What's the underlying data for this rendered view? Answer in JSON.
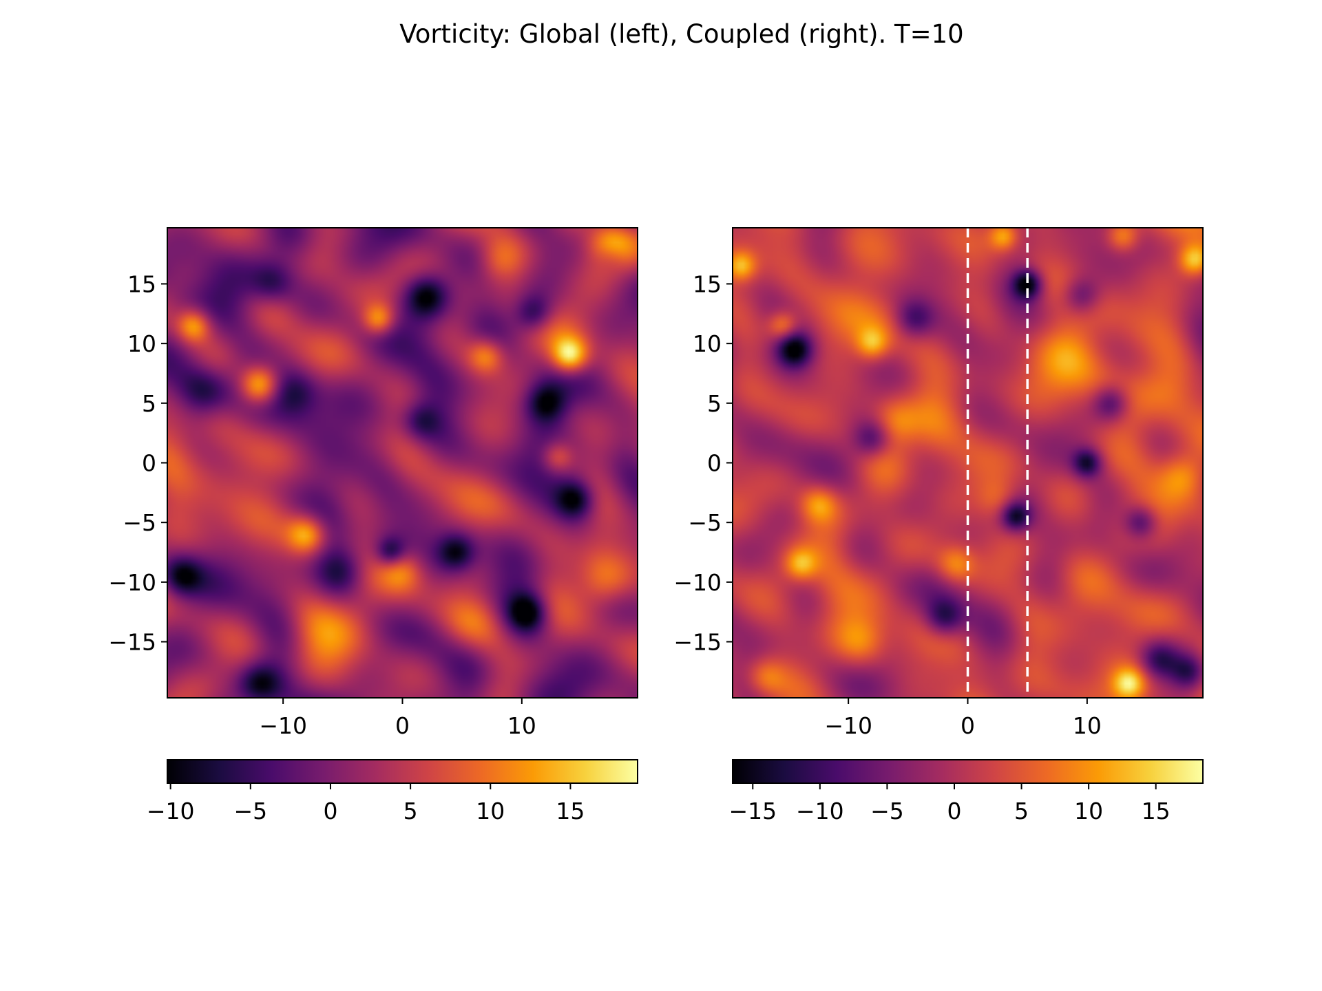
{
  "title": "Vorticity: Global (left), Coupled (right). T=10",
  "colormap": {
    "name": "inferno",
    "stops": [
      "#000004",
      "#1b0c41",
      "#4a0c6b",
      "#781c6d",
      "#a52c60",
      "#cf4446",
      "#ed6925",
      "#fb9b06",
      "#f7d13d",
      "#fcffa4"
    ]
  },
  "chart_data": [
    {
      "type": "heatmap",
      "name": "Global",
      "xlim": [
        -19.7,
        19.7
      ],
      "ylim": [
        -19.7,
        19.7
      ],
      "xticks": [
        -10,
        0,
        10
      ],
      "xtick_labels": [
        "−10",
        "0",
        "10"
      ],
      "yticks": [
        15,
        10,
        5,
        0,
        -5,
        -10,
        -15
      ],
      "ytick_labels": [
        "15",
        "10",
        "5",
        "0",
        "−5",
        "−10",
        "−15"
      ],
      "value_range": [
        -10.2,
        19.2
      ],
      "colorbar": {
        "ticks": [
          -10,
          -5,
          0,
          5,
          10,
          15
        ],
        "tick_labels": [
          "−10",
          "−5",
          "0",
          "5",
          "10",
          "15"
        ]
      },
      "dashed_lines_x": [],
      "features": [
        {
          "x": -17.5,
          "y": 11.5,
          "value": 14,
          "r": 1.4
        },
        {
          "x": -16.5,
          "y": 6.0,
          "value": -10,
          "r": 2.2
        },
        {
          "x": -12.0,
          "y": 6.5,
          "value": 17,
          "r": 1.6
        },
        {
          "x": -9.0,
          "y": 6.0,
          "value": -7,
          "r": 2.0
        },
        {
          "x": -2.0,
          "y": 12.0,
          "value": 13,
          "r": 1.3
        },
        {
          "x": 2.0,
          "y": 14.0,
          "value": -10,
          "r": 1.8
        },
        {
          "x": 7.0,
          "y": 9.0,
          "value": 12,
          "r": 1.5
        },
        {
          "x": 11.0,
          "y": 12.5,
          "value": -9,
          "r": 1.6
        },
        {
          "x": 14.0,
          "y": 9.0,
          "value": 18,
          "r": 1.5
        },
        {
          "x": 17.5,
          "y": 17.5,
          "value": -8,
          "r": 1.4
        },
        {
          "x": 17.5,
          "y": 18.0,
          "value": 16,
          "r": 1.7
        },
        {
          "x": 12.0,
          "y": 5.0,
          "value": -10,
          "r": 1.7
        },
        {
          "x": 1.5,
          "y": 3.5,
          "value": -6,
          "r": 1.6
        },
        {
          "x": 13.0,
          "y": 0.5,
          "value": 10,
          "r": 1.3
        },
        {
          "x": 14.5,
          "y": -3.0,
          "value": -10,
          "r": 1.6
        },
        {
          "x": -14.0,
          "y": -3.0,
          "value": 8,
          "r": 4.5
        },
        {
          "x": -8.0,
          "y": -6.0,
          "value": 14,
          "r": 1.6
        },
        {
          "x": -5.0,
          "y": -9.0,
          "value": -7,
          "r": 2.0
        },
        {
          "x": -1.0,
          "y": -7.5,
          "value": -8,
          "r": 1.2
        },
        {
          "x": 4.5,
          "y": -7.5,
          "value": -10,
          "r": 1.6
        },
        {
          "x": 0.0,
          "y": -9.0,
          "value": 11,
          "r": 1.8
        },
        {
          "x": 6.0,
          "y": -13.5,
          "value": 11,
          "r": 2.6
        },
        {
          "x": 10.5,
          "y": -12.5,
          "value": -10,
          "r": 1.6
        },
        {
          "x": -6.5,
          "y": -14.5,
          "value": 8,
          "r": 3.0
        },
        {
          "x": -12.0,
          "y": -18.5,
          "value": -9,
          "r": 1.8
        },
        {
          "x": -18.5,
          "y": -9.5,
          "value": -8,
          "r": 1.6
        },
        {
          "x": 17.0,
          "y": -10.0,
          "value": 9,
          "r": 2.2
        },
        {
          "x": -11.0,
          "y": 15.0,
          "value": -7,
          "r": 1.8
        },
        {
          "x": 8.0,
          "y": 17.0,
          "value": 7,
          "r": 1.8
        }
      ]
    },
    {
      "type": "heatmap",
      "name": "Coupled",
      "xlim": [
        -19.7,
        19.7
      ],
      "ylim": [
        -19.7,
        19.7
      ],
      "xticks": [
        -10,
        0,
        10
      ],
      "xtick_labels": [
        "−10",
        "0",
        "10"
      ],
      "yticks": [
        15,
        10,
        5,
        0,
        -5,
        -10,
        -15
      ],
      "ytick_labels": [
        "15",
        "10",
        "5",
        "0",
        "−5",
        "−10",
        "−15"
      ],
      "value_range": [
        -16.5,
        18.5
      ],
      "colorbar": {
        "ticks": [
          -15,
          -10,
          -5,
          0,
          5,
          10,
          15
        ],
        "tick_labels": [
          "−15",
          "−10",
          "−5",
          "0",
          "5",
          "10",
          "15"
        ]
      },
      "dashed_lines_x": [
        0,
        5
      ],
      "features": [
        {
          "x": -14.5,
          "y": 9.5,
          "value": -16,
          "r": 1.5
        },
        {
          "x": -15.5,
          "y": 11.5,
          "value": 12,
          "r": 1.2
        },
        {
          "x": -8.0,
          "y": 10.0,
          "value": 12,
          "r": 1.3
        },
        {
          "x": -19.0,
          "y": 16.5,
          "value": 13,
          "r": 1.2
        },
        {
          "x": 19.0,
          "y": 17.0,
          "value": 16,
          "r": 1.3
        },
        {
          "x": 5.0,
          "y": 15.0,
          "value": -15,
          "r": 1.2
        },
        {
          "x": 3.0,
          "y": 19.0,
          "value": 14,
          "r": 1.2
        },
        {
          "x": 13.0,
          "y": 19.0,
          "value": 12,
          "r": 1.3
        },
        {
          "x": 8.5,
          "y": 9.5,
          "value": 9,
          "r": 2.6
        },
        {
          "x": 9.5,
          "y": 14.0,
          "value": -10,
          "r": 1.6
        },
        {
          "x": 16.0,
          "y": 6.0,
          "value": 9,
          "r": 2.6
        },
        {
          "x": 12.0,
          "y": 5.0,
          "value": -10,
          "r": 1.5
        },
        {
          "x": -6.0,
          "y": 3.5,
          "value": 10,
          "r": 2.0
        },
        {
          "x": -8.0,
          "y": 2.0,
          "value": -10,
          "r": 1.6
        },
        {
          "x": 10.0,
          "y": 0.0,
          "value": -12,
          "r": 1.2
        },
        {
          "x": 14.5,
          "y": -5.0,
          "value": -11,
          "r": 1.4
        },
        {
          "x": -12.5,
          "y": -3.5,
          "value": 11,
          "r": 1.5
        },
        {
          "x": -14.0,
          "y": -8.5,
          "value": 12,
          "r": 1.3
        },
        {
          "x": 2.5,
          "y": -3.0,
          "value": 10,
          "r": 1.8
        },
        {
          "x": 4.0,
          "y": -4.5,
          "value": -12,
          "r": 1.2
        },
        {
          "x": -1.0,
          "y": -8.5,
          "value": 11,
          "r": 1.6
        },
        {
          "x": -2.0,
          "y": -13.0,
          "value": -11,
          "r": 1.6
        },
        {
          "x": 16.0,
          "y": -16.5,
          "value": -9,
          "r": 1.6
        },
        {
          "x": 13.5,
          "y": -18.5,
          "value": 15,
          "r": 1.3
        },
        {
          "x": -9.0,
          "y": -15.0,
          "value": 9,
          "r": 2.0
        },
        {
          "x": -17.0,
          "y": -18.0,
          "value": 10,
          "r": 1.6
        },
        {
          "x": 18.5,
          "y": -17.5,
          "value": -8,
          "r": 1.4
        },
        {
          "x": -4.5,
          "y": 12.0,
          "value": -8,
          "r": 1.6
        },
        {
          "x": 18.0,
          "y": -1.0,
          "value": 8,
          "r": 1.8
        }
      ]
    }
  ]
}
